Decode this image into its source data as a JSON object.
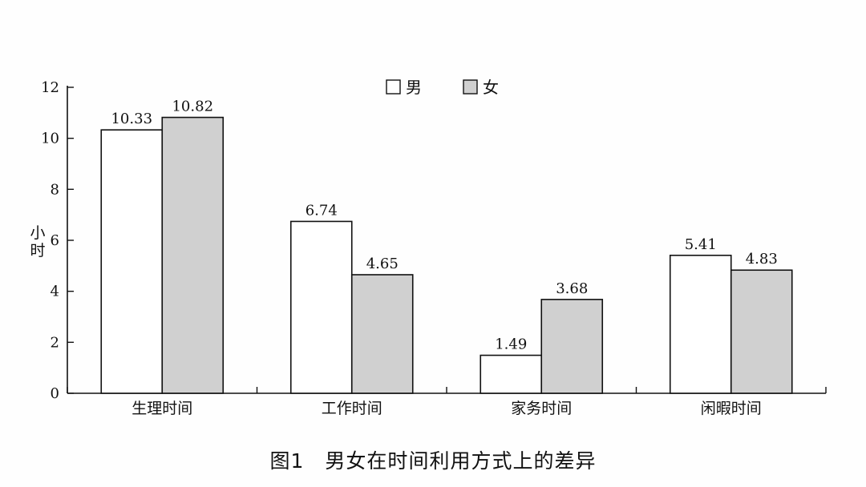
{
  "caption": "图1　男女在时间利用方式上的差异",
  "chart_data": {
    "type": "bar",
    "categories": [
      "生理时间",
      "工作时间",
      "家务时间",
      "闲暇时间"
    ],
    "series": [
      {
        "name": "男",
        "values": [
          10.33,
          6.74,
          1.49,
          5.41
        ],
        "color": "#ffffff"
      },
      {
        "name": "女",
        "values": [
          10.82,
          4.65,
          3.68,
          4.83
        ],
        "color": "#d0d0d0"
      }
    ],
    "value_labels": [
      [
        "10.33",
        "6.74",
        "1.49",
        "5.41"
      ],
      [
        "10.82",
        "4.65",
        "3.68",
        "4.83"
      ]
    ],
    "ylabel": "小时",
    "ylim": [
      0,
      12
    ],
    "yticks": [
      0,
      2,
      4,
      6,
      8,
      10,
      12
    ],
    "legend": "top-center",
    "grid": false
  }
}
